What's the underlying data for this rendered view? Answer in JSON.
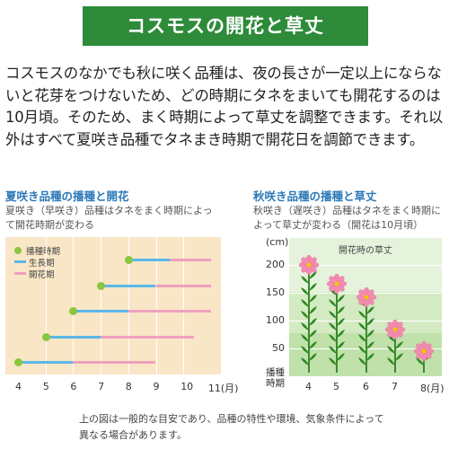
{
  "title": "コスモスの開花と草丈",
  "intro": "コスモスのなかでも秋に咲く品種は、夜の長さが一定以上にならないと花芽をつけないため、どの時期にタネをまいても開花するのは10月頃。そのため、まく時期によって草丈を調整できます。それ以外はすべて夏咲き品種でタネまき時期で開花日を調節できます。",
  "summer": {
    "heading": "夏咲き品種の播種と開花",
    "subtitle": "夏咲き（早咲き）品種はタネをまく時期によって開花時期が変わる",
    "legend": [
      "播種時期",
      "生長期",
      "開花期"
    ],
    "x_labels": [
      "4",
      "5",
      "6",
      "7",
      "8",
      "9",
      "10",
      "11(月)"
    ]
  },
  "autumn": {
    "heading": "秋咲き品種の播種と草丈",
    "subtitle": "秋咲き（遅咲き）品種はタネをまく時期によって草丈が変わる（開花は10月頃）",
    "y_unit": "(cm)",
    "y_labels": [
      "200",
      "150",
      "100",
      "50"
    ],
    "caption": "開花時の草丈",
    "x_axis_title": "播種\n時期",
    "x_labels": [
      "4",
      "5",
      "6",
      "7",
      "8(月)"
    ]
  },
  "footer": "上の図は一般的な目安であり、品種の特性や環境、気象条件によって異なる場合があります。",
  "colors": {
    "title_bg": "#2e8b3a",
    "heading": "#2a78b8",
    "sow": "#8bc53f",
    "growth": "#5bb8e8",
    "bloom": "#f0a0be",
    "chart_bg": "#f9e6c6"
  },
  "chart_data": [
    {
      "type": "timeline",
      "series": [
        {
          "sow": 4.0,
          "growth_end": 6.0,
          "bloom_end": 9.0
        },
        {
          "sow": 5.0,
          "growth_end": 7.0,
          "bloom_end": 10.4
        },
        {
          "sow": 6.0,
          "growth_end": 8.0,
          "bloom_end": 11.0
        },
        {
          "sow": 7.0,
          "growth_end": 9.0,
          "bloom_end": 11.0
        },
        {
          "sow": 8.0,
          "growth_end": 9.5,
          "bloom_end": 11.0
        }
      ],
      "xlim": [
        4,
        11
      ]
    },
    {
      "type": "bar",
      "categories": [
        "4",
        "5",
        "6",
        "7",
        "8"
      ],
      "values": [
        200,
        165,
        140,
        80,
        40
      ],
      "ylim": [
        0,
        250
      ]
    }
  ]
}
